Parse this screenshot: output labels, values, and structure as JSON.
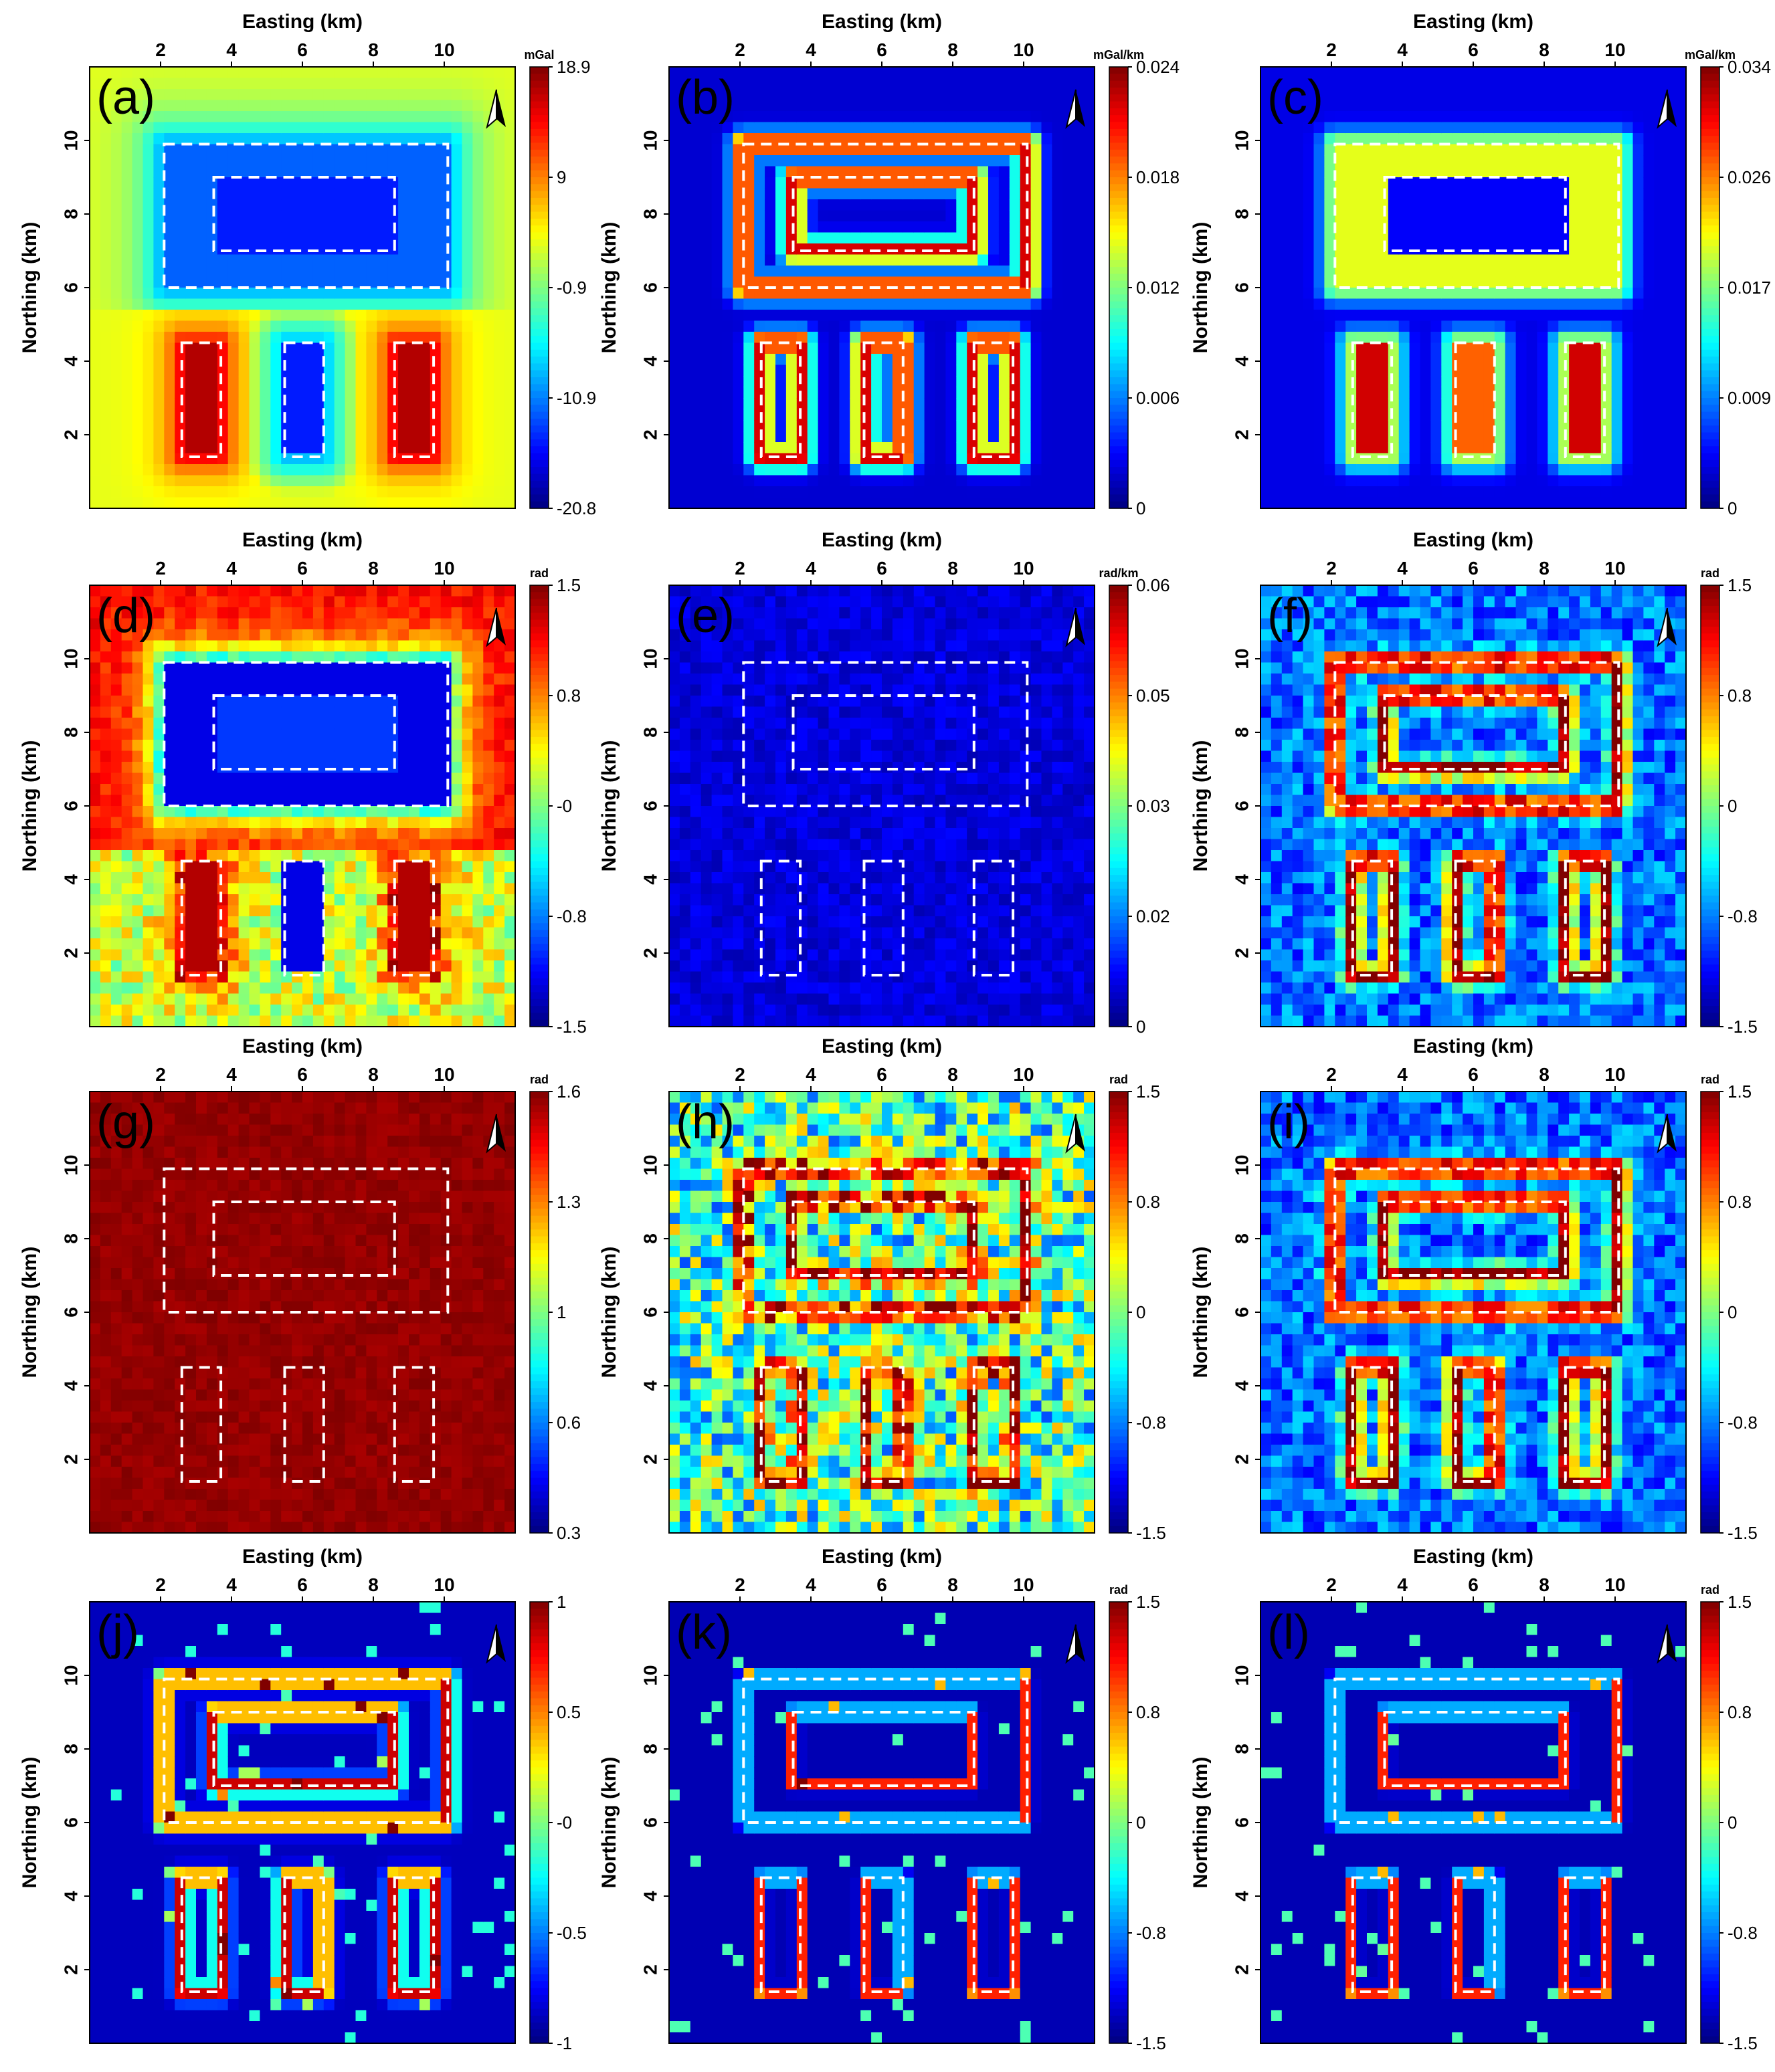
{
  "figure": {
    "panels": [
      {
        "letter": "(a)",
        "unit": "mGal",
        "ticks": [
          "18.9",
          "9",
          "-0.9",
          "-10.9",
          "-20.8"
        ],
        "field": "anomaly"
      },
      {
        "letter": "(b)",
        "unit": "mGal/km",
        "ticks": [
          "0.024",
          "0.018",
          "0.012",
          "0.006",
          "0"
        ],
        "field": "edge"
      },
      {
        "letter": "(c)",
        "unit": "mGal/km",
        "ticks": [
          "0.034",
          "0.026",
          "0.017",
          "0.009",
          "0"
        ],
        "field": "filled"
      },
      {
        "letter": "(d)",
        "unit": "rad",
        "ticks": [
          "1.5",
          "0.8",
          "-0",
          "-0.8",
          "-1.5"
        ],
        "field": "tilt"
      },
      {
        "letter": "(e)",
        "unit": "rad/km",
        "ticks": [
          "0.06",
          "0.05",
          "0.03",
          "0.02",
          "0"
        ],
        "field": "low"
      },
      {
        "letter": "(f)",
        "unit": "rad",
        "ticks": [
          "1.5",
          "0.8",
          "0",
          "-0.8",
          "-1.5"
        ],
        "field": "noisyEdge"
      },
      {
        "letter": "(g)",
        "unit": "rad",
        "ticks": [
          "1.6",
          "1.3",
          "1",
          "0.6",
          "0.3"
        ],
        "field": "high"
      },
      {
        "letter": "(h)",
        "unit": "rad",
        "ticks": [
          "1.5",
          "0.8",
          "0",
          "-0.8",
          "-1.5"
        ],
        "field": "veryNoisy"
      },
      {
        "letter": "(i)",
        "unit": "rad",
        "ticks": [
          "1.5",
          "0.8",
          "0",
          "-0.8",
          "-1.5"
        ],
        "field": "noisyEdge"
      },
      {
        "letter": "(j)",
        "unit": "",
        "ticks": [
          "1",
          "0.5",
          "-0",
          "-0.5",
          "-1"
        ],
        "field": "sharpEdge"
      },
      {
        "letter": "(k)",
        "unit": "rad",
        "ticks": [
          "1.5",
          "0.8",
          "0",
          "-0.8",
          "-1.5"
        ],
        "field": "thinEdge"
      },
      {
        "letter": "(l)",
        "unit": "rad",
        "ticks": [
          "1.5",
          "0.8",
          "0",
          "-0.8",
          "-1.5"
        ],
        "field": "thinEdge"
      }
    ],
    "xlabel": "Easting (km)",
    "ylabel": "Northing (km)",
    "xticks": [
      "2",
      "4",
      "6",
      "8",
      "10"
    ],
    "yticks": [
      "2",
      "4",
      "6",
      "8",
      "10"
    ]
  },
  "chart_data": {
    "type": "heatmap",
    "xlabel": "Easting (km)",
    "ylabel": "Northing (km)",
    "xticks": [
      2,
      4,
      6,
      8,
      10
    ],
    "yticks": [
      2,
      4,
      6,
      8,
      10
    ],
    "xlim": [
      0,
      12
    ],
    "ylim": [
      0,
      12
    ],
    "colormap": "jet",
    "north_arrow": true,
    "outlines_km": [
      [
        2.1,
        6.0,
        10.1,
        9.9
      ],
      [
        3.5,
        7.0,
        8.6,
        9.0
      ],
      [
        2.6,
        1.4,
        3.7,
        4.5
      ],
      [
        5.5,
        1.4,
        6.6,
        4.5
      ],
      [
        8.6,
        1.4,
        9.7,
        4.5
      ]
    ],
    "panels": [
      {
        "label": "(a)",
        "unit": "mGal",
        "colorbar_ticks": [
          18.9,
          9,
          -0.9,
          -10.9,
          -20.8
        ],
        "range": [
          -20.8,
          18.9
        ]
      },
      {
        "label": "(b)",
        "unit": "mGal/km",
        "colorbar_ticks": [
          0.024,
          0.018,
          0.012,
          0.006,
          0
        ],
        "range": [
          0,
          0.024
        ]
      },
      {
        "label": "(c)",
        "unit": "mGal/km",
        "colorbar_ticks": [
          0.034,
          0.026,
          0.017,
          0.009,
          0
        ],
        "range": [
          0,
          0.034
        ]
      },
      {
        "label": "(d)",
        "unit": "rad",
        "colorbar_ticks": [
          1.5,
          0.8,
          0,
          -0.8,
          -1.5
        ],
        "range": [
          -1.5,
          1.5
        ]
      },
      {
        "label": "(e)",
        "unit": "rad/km",
        "colorbar_ticks": [
          0.06,
          0.05,
          0.03,
          0.02,
          0
        ],
        "range": [
          0,
          0.06
        ]
      },
      {
        "label": "(f)",
        "unit": "rad",
        "colorbar_ticks": [
          1.5,
          0.8,
          0,
          -0.8,
          -1.5
        ],
        "range": [
          -1.5,
          1.5
        ]
      },
      {
        "label": "(g)",
        "unit": "rad",
        "colorbar_ticks": [
          1.6,
          1.3,
          1,
          0.6,
          0.3
        ],
        "range": [
          0.3,
          1.6
        ]
      },
      {
        "label": "(h)",
        "unit": "rad",
        "colorbar_ticks": [
          1.5,
          0.8,
          0,
          -0.8,
          -1.5
        ],
        "range": [
          -1.5,
          1.5
        ]
      },
      {
        "label": "(i)",
        "unit": "rad",
        "colorbar_ticks": [
          1.5,
          0.8,
          0,
          -0.8,
          -1.5
        ],
        "range": [
          -1.5,
          1.5
        ]
      },
      {
        "label": "(j)",
        "unit": "",
        "colorbar_ticks": [
          1,
          0.5,
          0,
          -0.5,
          -1
        ],
        "range": [
          -1,
          1
        ]
      },
      {
        "label": "(k)",
        "unit": "rad",
        "colorbar_ticks": [
          1.5,
          0.8,
          0,
          -0.8,
          -1.5
        ],
        "range": [
          -1.5,
          1.5
        ]
      },
      {
        "label": "(l)",
        "unit": "rad",
        "colorbar_ticks": [
          1.5,
          0.8,
          0,
          -0.8,
          -1.5
        ],
        "range": [
          -1.5,
          1.5
        ]
      }
    ]
  }
}
